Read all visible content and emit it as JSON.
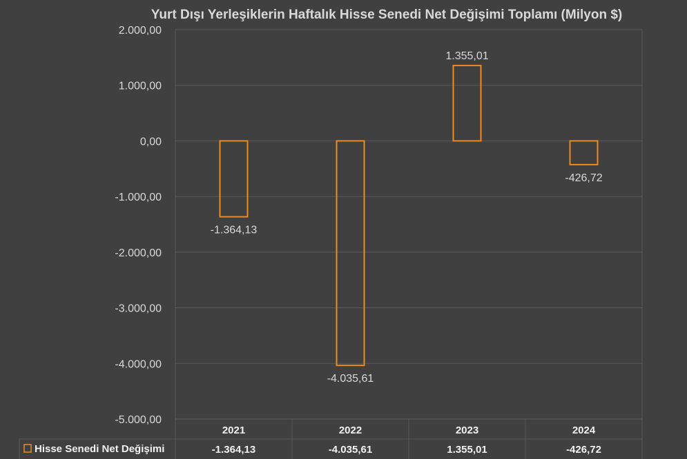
{
  "chart_data": {
    "type": "bar",
    "title": "Yurt Dışı Yerleşiklerin Haftalık Hisse Senedi Net Değişimi Toplamı (Milyon $)",
    "categories": [
      "2021",
      "2022",
      "2023",
      "2024"
    ],
    "series": [
      {
        "name": "Hisse Senedi Net Değişimi",
        "values": [
          -1364.13,
          -4035.61,
          1355.01,
          -426.72
        ],
        "labels": [
          "-1.364,13",
          "-4.035,61",
          "1.355,01",
          "-426,72"
        ],
        "table_values": [
          "-1.364,13",
          "-4.035,61",
          "1.355,01",
          "-426,72"
        ],
        "color": "#f08a1c"
      }
    ],
    "ylim": [
      -5000,
      2000
    ],
    "yticks": [
      2000,
      1000,
      0,
      -1000,
      -2000,
      -3000,
      -4000,
      -5000
    ],
    "ytick_labels": [
      "2.000,00",
      "1.000,00",
      "0,00",
      "-1.000,00",
      "-2.000,00",
      "-3.000,00",
      "-4.000,00",
      "-5.000,00"
    ],
    "xlabel": "",
    "ylabel": "",
    "grid": true,
    "legend": "data-table-bottom",
    "colors": {
      "background": "#404040",
      "bar_outline": "#f08a1c",
      "grid": "#595959",
      "text": "#d9d9d9"
    }
  }
}
